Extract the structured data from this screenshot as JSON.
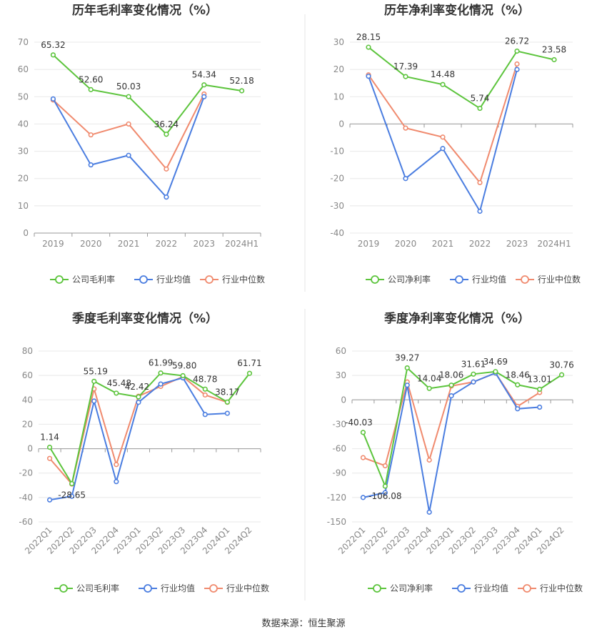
{
  "source_note": "数据来源：恒生聚源",
  "legend_marker": "○",
  "colors": {
    "company": "#5cc43c",
    "industry_avg": "#4a7de0",
    "industry_median": "#f08a6e"
  },
  "chart_data": [
    {
      "type": "line",
      "title": "历年毛利率变化情况（%）",
      "categories": [
        "2019",
        "2020",
        "2021",
        "2022",
        "2023",
        "2024H1"
      ],
      "ylim": [
        0,
        70
      ],
      "yticks": [
        "0",
        "10",
        "20",
        "30",
        "40",
        "50",
        "60",
        "70"
      ],
      "grid": true,
      "legend_position": "bottom",
      "series": [
        {
          "name": "公司毛利率",
          "values": [
            65.32,
            52.6,
            50.03,
            36.24,
            54.34,
            52.18
          ],
          "labels": [
            "65.32",
            "52.60",
            "50.03",
            "36.24",
            "54.34",
            "52.18"
          ]
        },
        {
          "name": "行业均值",
          "values": [
            49.2,
            25.0,
            28.5,
            13.2,
            50.0,
            null
          ]
        },
        {
          "name": "行业中位数",
          "values": [
            48.8,
            36.0,
            40.0,
            23.5,
            51.0,
            null
          ]
        }
      ]
    },
    {
      "type": "line",
      "title": "历年净利率变化情况（%）",
      "categories": [
        "2019",
        "2020",
        "2021",
        "2022",
        "2023",
        "2024H1"
      ],
      "ylim": [
        -40,
        30
      ],
      "yticks": [
        "-40",
        "-30",
        "-20",
        "-10",
        "0",
        "10",
        "20",
        "30"
      ],
      "grid": true,
      "legend_position": "bottom",
      "series": [
        {
          "name": "公司净利率",
          "values": [
            28.15,
            17.39,
            14.48,
            5.74,
            26.72,
            23.58
          ],
          "labels": [
            "28.15",
            "17.39",
            "14.48",
            "5.74",
            "26.72",
            "23.58"
          ]
        },
        {
          "name": "行业均值",
          "values": [
            17.5,
            -20.0,
            -9.0,
            -32.0,
            20.0,
            null
          ]
        },
        {
          "name": "行业中位数",
          "values": [
            18.0,
            -1.5,
            -4.8,
            -21.5,
            22.0,
            null
          ]
        }
      ]
    },
    {
      "type": "line",
      "title": "季度毛利率变化情况（%）",
      "categories": [
        "2022Q1",
        "2022Q2",
        "2022Q3",
        "2022Q4",
        "2023Q1",
        "2023Q2",
        "2023Q3",
        "2023Q4",
        "2024Q1",
        "2024Q2"
      ],
      "ylim": [
        -60,
        80
      ],
      "yticks": [
        "-60",
        "-40",
        "-20",
        "0",
        "20",
        "40",
        "60",
        "80"
      ],
      "grid": true,
      "legend_position": "bottom",
      "series": [
        {
          "name": "公司毛利率",
          "values": [
            1.14,
            -28.65,
            55.19,
            45.48,
            42.42,
            61.99,
            59.8,
            48.78,
            38.17,
            61.71
          ],
          "labels": [
            "1.14",
            "-28.65",
            "55.19",
            "45.48",
            "42.42",
            "61.99",
            "59.80",
            "48.78",
            "38.17",
            "61.71"
          ]
        },
        {
          "name": "行业均值",
          "values": [
            -42.0,
            -39.0,
            39.0,
            -27.0,
            38.0,
            53.0,
            58.0,
            28.0,
            29.0,
            null
          ]
        },
        {
          "name": "行业中位数",
          "values": [
            -8.0,
            -29.0,
            49.0,
            -13.0,
            43.0,
            51.0,
            59.0,
            44.0,
            38.0,
            null
          ]
        }
      ]
    },
    {
      "type": "line",
      "title": "季度净利率变化情况（%）",
      "categories": [
        "2022Q1",
        "2022Q2",
        "2022Q3",
        "2022Q4",
        "2023Q1",
        "2023Q2",
        "2023Q3",
        "2023Q4",
        "2024Q1",
        "2024Q2"
      ],
      "ylim": [
        -150,
        60
      ],
      "yticks": [
        "-150",
        "-120",
        "-90",
        "-60",
        "-30",
        "0",
        "30",
        "60"
      ],
      "grid": true,
      "legend_position": "bottom",
      "series": [
        {
          "name": "公司净利率",
          "values": [
            -40.03,
            -106.08,
            39.27,
            14.04,
            18.06,
            31.61,
            34.69,
            18.46,
            13.01,
            30.76
          ],
          "labels": [
            "-40.03",
            "-106.08",
            "39.27",
            "14.04",
            "18.06",
            "31.61",
            "34.69",
            "18.46",
            "13.01",
            "30.76"
          ]
        },
        {
          "name": "行业均值",
          "values": [
            -120.0,
            -114.0,
            18.0,
            -138.0,
            5.0,
            22.0,
            33.0,
            -11.0,
            -9.0,
            null
          ]
        },
        {
          "name": "行业中位数",
          "values": [
            -71.0,
            -81.0,
            22.0,
            -74.0,
            17.0,
            22.0,
            33.0,
            -8.0,
            9.0,
            null
          ]
        }
      ]
    }
  ]
}
